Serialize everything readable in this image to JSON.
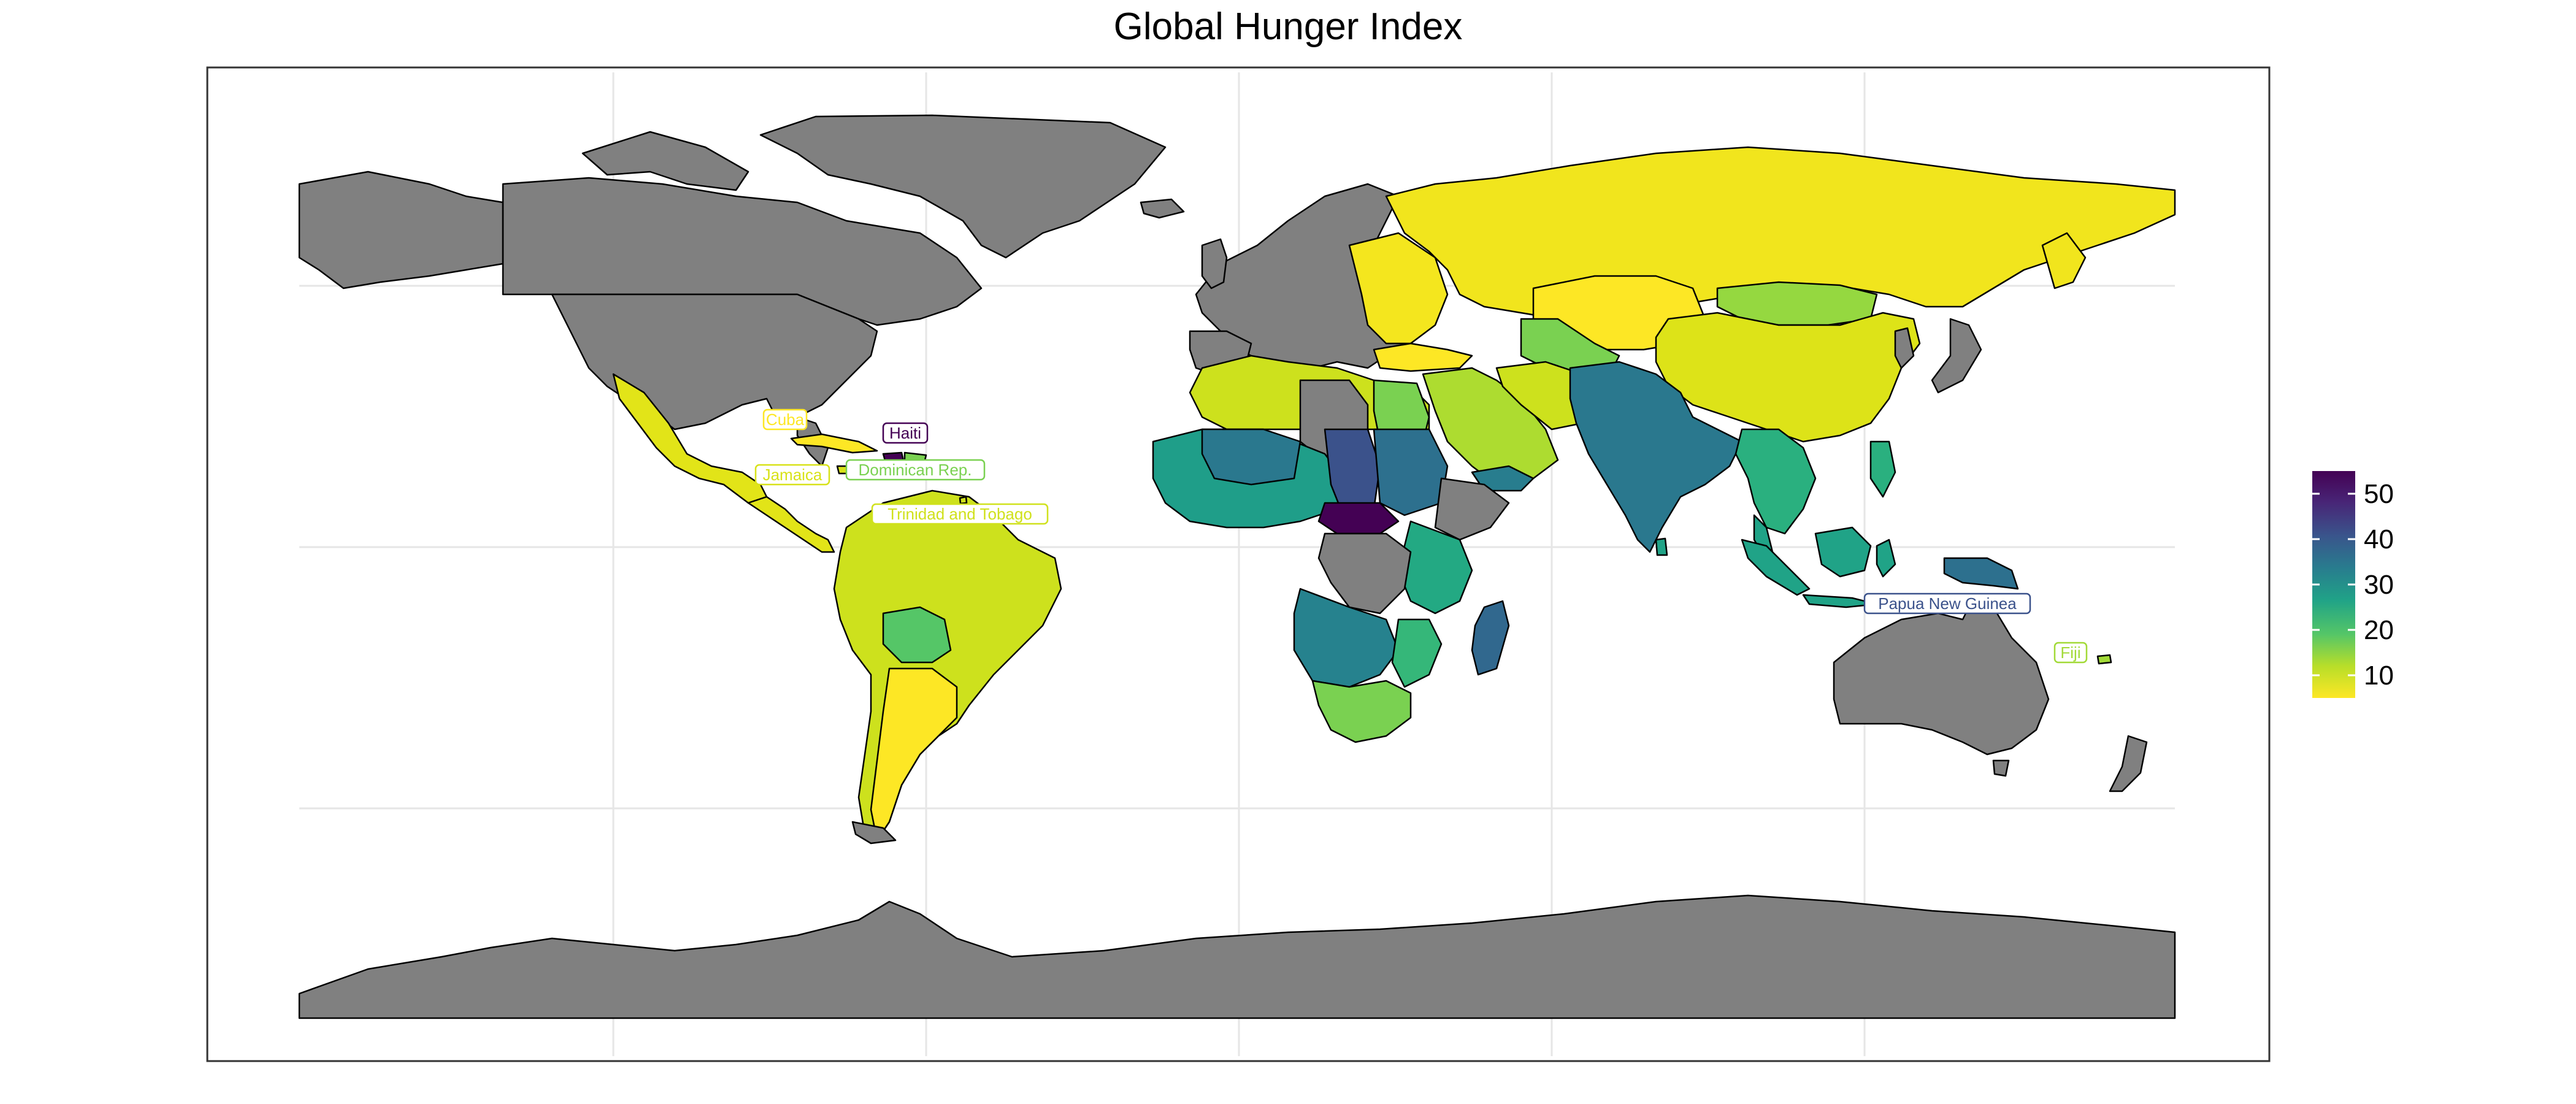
{
  "title": "Global Hunger Index",
  "legend": {
    "ticks": [
      10,
      20,
      30,
      40,
      50
    ],
    "min": 5,
    "max": 55,
    "palette": [
      "#FDE725",
      "#B8DE29",
      "#55C667",
      "#20A387",
      "#287D8E",
      "#39568C",
      "#482677",
      "#440154"
    ]
  },
  "colors": {
    "no_data": "#808080",
    "background": "#ffffff",
    "grid": "#e6e6e6"
  },
  "labels": [
    {
      "name": "Cuba",
      "value": 8
    },
    {
      "name": "Haiti",
      "value": 51
    },
    {
      "name": "Dominican Rep.",
      "value": 17
    },
    {
      "name": "Jamaica",
      "value": 11
    },
    {
      "name": "Trinidad and Tobago",
      "value": 12
    },
    {
      "name": "Papua New Guinea",
      "value": 40
    },
    {
      "name": "Fiji",
      "value": 13
    }
  ]
}
